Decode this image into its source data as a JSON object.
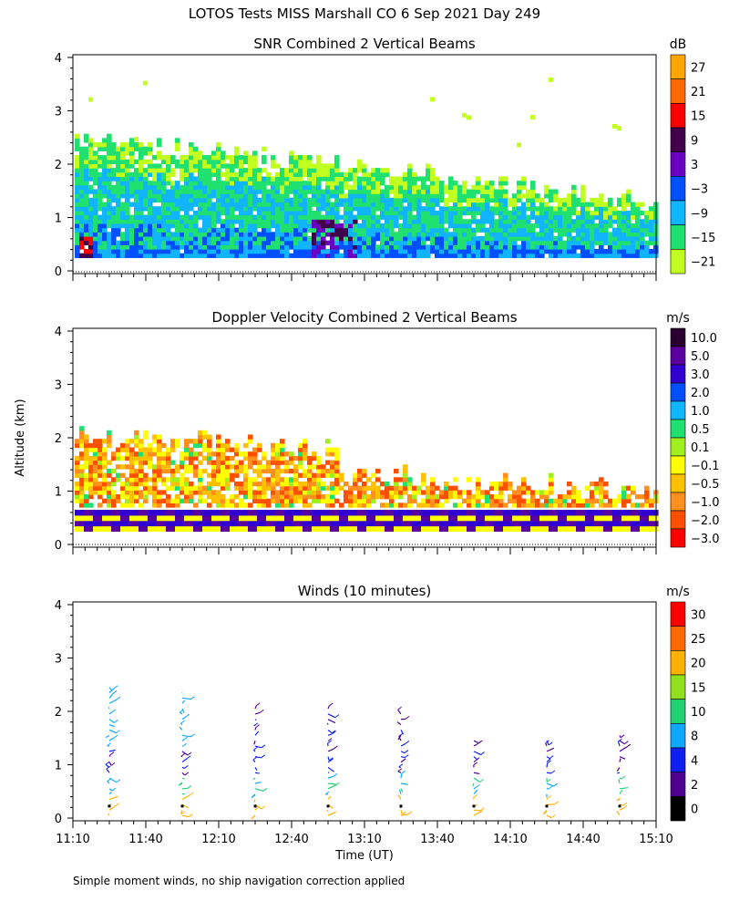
{
  "figure_title": "LOTOS Tests MISS Marshall CO   6 Sep 2021 Day 249",
  "footnote": "Simple moment winds, no ship navigation correction applied",
  "chart_data": [
    {
      "type": "heatmap",
      "title": "SNR Combined 2 Vertical Beams",
      "xlabel": "",
      "ylabel": "",
      "ylim": [
        0,
        4
      ],
      "yticks": [
        "0",
        "1",
        "2",
        "3",
        "4"
      ],
      "xticks": [],
      "colorbar": {
        "unit": "dB",
        "levels": [
          "27",
          "21",
          "15",
          "9",
          "3",
          "−3",
          "−9",
          "−15",
          "−21"
        ],
        "colors": [
          "#ffa500",
          "#ff6a00",
          "#ff0000",
          "#40004a",
          "#6a00c0",
          "#0050ff",
          "#10b4ff",
          "#20e070",
          "#c0ff20"
        ]
      },
      "description_of_field": "Echo returns from ~0.25 km up to ~2.5 km, strongest near surface"
    },
    {
      "type": "heatmap",
      "title": "Doppler Velocity Combined 2 Vertical Beams",
      "xlabel": "",
      "ylabel": "Altitude (km)",
      "ylim": [
        0,
        4
      ],
      "yticks": [
        "0",
        "1",
        "2",
        "3",
        "4"
      ],
      "xticks": [],
      "colorbar": {
        "unit": "m/s",
        "levels": [
          "10.0",
          "5.0",
          "3.0",
          "2.0",
          "1.0",
          "0.5",
          "0.1",
          "−0.1",
          "−0.5",
          "−1.0",
          "−2.0",
          "−3.0"
        ],
        "colors": [
          "#2a0030",
          "#5a00a0",
          "#3000d0",
          "#0050ff",
          "#10b4ff",
          "#20e070",
          "#a0f020",
          "#ffff00",
          "#ffc000",
          "#ff9020",
          "#ff5000",
          "#ff0000"
        ]
      }
    },
    {
      "type": "scatter",
      "title": "Winds (10 minutes)",
      "xlabel": "Time (UT)",
      "ylabel": "",
      "ylim": [
        0,
        4
      ],
      "yticks": [
        "0",
        "1",
        "2",
        "3",
        "4"
      ],
      "xticks": [
        "11:10",
        "11:40",
        "12:10",
        "12:40",
        "13:10",
        "13:40",
        "14:10",
        "14:40",
        "15:10"
      ],
      "x_time_minutes": [
        670,
        910
      ],
      "profile_times": [
        "11:25",
        "11:55",
        "12:25",
        "12:55",
        "13:25",
        "13:55",
        "14:25",
        "14:55"
      ],
      "profile_top_km": [
        2.5,
        2.45,
        2.1,
        2.15,
        2.05,
        1.5,
        1.5,
        1.6
      ],
      "colorbar": {
        "unit": "m/s",
        "levels": [
          "30",
          "25",
          "20",
          "15",
          "10",
          "8",
          "4",
          "2",
          "0"
        ],
        "colors": [
          "#ff0000",
          "#ff6a00",
          "#ffb000",
          "#90e020",
          "#20d070",
          "#10a8ff",
          "#1020f0",
          "#500090",
          "#000000"
        ]
      }
    }
  ]
}
